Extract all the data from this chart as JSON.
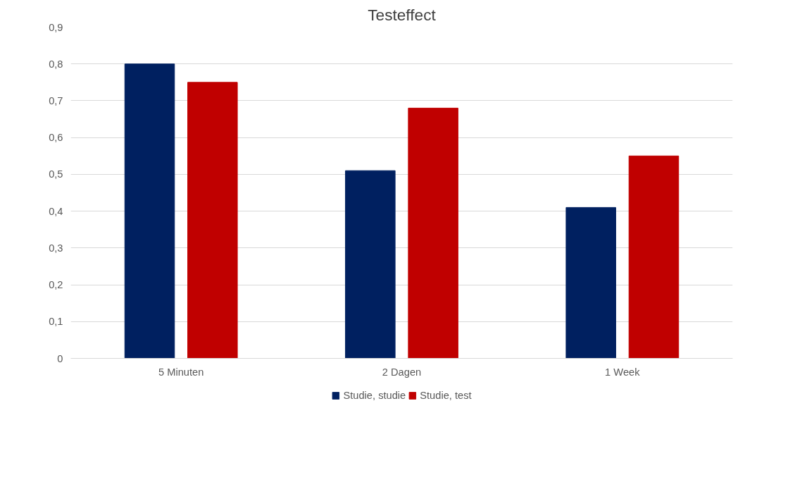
{
  "chart_data": {
    "type": "bar",
    "title": "Testeffect",
    "categories": [
      "5 Minuten",
      "2 Dagen",
      "1 Week"
    ],
    "series": [
      {
        "name": "Studie, studie",
        "color": "#002060",
        "values": [
          0.8,
          0.51,
          0.41
        ]
      },
      {
        "name": "Studie, test",
        "color": "#c00000",
        "values": [
          0.75,
          0.68,
          0.55
        ]
      }
    ],
    "ylim": [
      0,
      0.9
    ],
    "yticks": [
      0,
      {
        "value": 0.1,
        "label": "0,1"
      },
      {
        "value": 0.2,
        "label": "0,2"
      },
      {
        "value": 0.3,
        "label": "0,3"
      },
      {
        "value": 0.4,
        "label": "0,4"
      },
      {
        "value": 0.5,
        "label": "0,5"
      },
      {
        "value": 0.6,
        "label": "0,6"
      },
      {
        "value": 0.7,
        "label": "0,7"
      },
      {
        "value": 0.8,
        "label": "0,8"
      },
      {
        "value": 0.9,
        "label": "0,9"
      }
    ],
    "grid": "y",
    "legend": "bottom"
  }
}
